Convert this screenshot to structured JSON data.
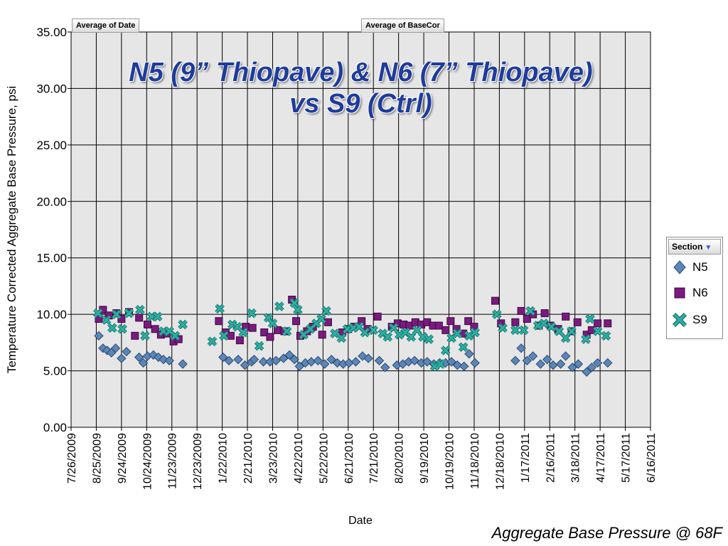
{
  "field_buttons": {
    "date": "Average of Date",
    "basecor": "Average of BaseCor"
  },
  "chart_data": {
    "type": "scatter",
    "title_lines": [
      "N5 (9” Thiopave) & N6 (7” Thiopave)",
      "vs S9 (Ctrl)"
    ],
    "xlabel": "Date",
    "ylabel": "Temperature Corrected Aggregate Base Pressure, psi",
    "ylim": [
      0,
      35
    ],
    "yticks": [
      "0.00",
      "5.00",
      "10.00",
      "15.00",
      "20.00",
      "25.00",
      "30.00",
      "35.00"
    ],
    "xlim": [
      "2009-07-26",
      "2011-06-16"
    ],
    "xticks": [
      "7/26/2009",
      "8/25/2009",
      "9/24/2009",
      "10/24/2009",
      "11/23/2009",
      "12/23/2009",
      "1/22/2010",
      "2/21/2010",
      "3/23/2010",
      "4/22/2010",
      "5/22/2010",
      "6/21/2010",
      "7/21/2010",
      "8/20/2010",
      "9/19/2010",
      "10/19/2010",
      "11/18/2010",
      "12/18/2010",
      "1/17/2011",
      "2/16/2011",
      "3/18/2011",
      "4/17/2011",
      "5/17/2011",
      "6/16/2011"
    ],
    "grid": true,
    "legend_title": "Section",
    "legend_position": "right",
    "series": [
      {
        "name": "N5",
        "marker": "diamond",
        "color": "#5b86b9",
        "points": [
          [
            "2009-08-28",
            8.1
          ],
          [
            "2009-09-02",
            7.0
          ],
          [
            "2009-09-07",
            6.8
          ],
          [
            "2009-09-12",
            6.6
          ],
          [
            "2009-09-17",
            7.0
          ],
          [
            "2009-09-24",
            6.1
          ],
          [
            "2009-09-30",
            6.7
          ],
          [
            "2009-10-15",
            6.2
          ],
          [
            "2009-10-20",
            5.7
          ],
          [
            "2009-10-25",
            6.3
          ],
          [
            "2009-11-01",
            6.4
          ],
          [
            "2009-11-07",
            6.2
          ],
          [
            "2009-11-13",
            6.0
          ],
          [
            "2009-11-20",
            5.9
          ],
          [
            "2009-12-06",
            5.6
          ],
          [
            "2010-01-23",
            6.2
          ],
          [
            "2010-01-30",
            5.9
          ],
          [
            "2010-02-10",
            6.0
          ],
          [
            "2010-02-18",
            5.5
          ],
          [
            "2010-02-26",
            5.8
          ],
          [
            "2010-03-01",
            6.0
          ],
          [
            "2010-03-12",
            5.8
          ],
          [
            "2010-03-20",
            5.8
          ],
          [
            "2010-03-27",
            5.9
          ],
          [
            "2010-04-05",
            6.1
          ],
          [
            "2010-04-12",
            6.4
          ],
          [
            "2010-04-18",
            6.0
          ],
          [
            "2010-04-24",
            5.4
          ],
          [
            "2010-05-01",
            5.7
          ],
          [
            "2010-05-08",
            5.8
          ],
          [
            "2010-05-16",
            5.9
          ],
          [
            "2010-05-24",
            5.6
          ],
          [
            "2010-06-01",
            6.0
          ],
          [
            "2010-06-08",
            5.7
          ],
          [
            "2010-06-15",
            5.6
          ],
          [
            "2010-06-22",
            5.7
          ],
          [
            "2010-06-30",
            5.8
          ],
          [
            "2010-07-08",
            6.3
          ],
          [
            "2010-07-15",
            6.1
          ],
          [
            "2010-07-28",
            5.9
          ],
          [
            "2010-08-04",
            5.3
          ],
          [
            "2010-08-18",
            5.5
          ],
          [
            "2010-08-25",
            5.6
          ],
          [
            "2010-09-01",
            5.8
          ],
          [
            "2010-09-08",
            5.9
          ],
          [
            "2010-09-16",
            5.7
          ],
          [
            "2010-09-23",
            5.8
          ],
          [
            "2010-10-01",
            5.6
          ],
          [
            "2010-10-08",
            5.7
          ],
          [
            "2010-10-15",
            5.7
          ],
          [
            "2010-10-22",
            5.8
          ],
          [
            "2010-10-29",
            5.5
          ],
          [
            "2010-11-06",
            5.4
          ],
          [
            "2010-11-12",
            6.5
          ],
          [
            "2010-11-19",
            5.7
          ],
          [
            "2011-01-06",
            5.9
          ],
          [
            "2011-01-13",
            7.0
          ],
          [
            "2011-01-20",
            5.9
          ],
          [
            "2011-01-27",
            6.3
          ],
          [
            "2011-02-05",
            5.6
          ],
          [
            "2011-02-13",
            6.0
          ],
          [
            "2011-02-20",
            5.5
          ],
          [
            "2011-03-01",
            5.6
          ],
          [
            "2011-03-07",
            6.3
          ],
          [
            "2011-03-15",
            5.3
          ],
          [
            "2011-03-22",
            5.6
          ],
          [
            "2011-04-01",
            4.9
          ],
          [
            "2011-04-07",
            5.3
          ],
          [
            "2011-04-14",
            5.7
          ],
          [
            "2011-04-26",
            5.7
          ]
        ]
      },
      {
        "name": "N6",
        "marker": "square",
        "color": "#7a1a80",
        "points": [
          [
            "2009-08-28",
            9.6
          ],
          [
            "2009-09-02",
            10.4
          ],
          [
            "2009-09-09",
            9.9
          ],
          [
            "2009-09-18",
            10.1
          ],
          [
            "2009-09-24",
            9.6
          ],
          [
            "2009-10-03",
            10.2
          ],
          [
            "2009-10-10",
            8.1
          ],
          [
            "2009-10-15",
            9.7
          ],
          [
            "2009-10-25",
            9.1
          ],
          [
            "2009-11-03",
            8.7
          ],
          [
            "2009-11-10",
            8.2
          ],
          [
            "2009-11-17",
            8.3
          ],
          [
            "2009-11-25",
            7.6
          ],
          [
            "2009-12-01",
            7.8
          ],
          [
            "2010-01-18",
            9.4
          ],
          [
            "2010-01-26",
            8.4
          ],
          [
            "2010-02-01",
            8.1
          ],
          [
            "2010-02-12",
            7.7
          ],
          [
            "2010-02-19",
            8.9
          ],
          [
            "2010-02-27",
            8.8
          ],
          [
            "2010-03-13",
            8.4
          ],
          [
            "2010-03-20",
            8.0
          ],
          [
            "2010-03-29",
            8.6
          ],
          [
            "2010-04-06",
            8.5
          ],
          [
            "2010-04-15",
            11.3
          ],
          [
            "2010-04-20",
            9.4
          ],
          [
            "2010-04-25",
            8.1
          ],
          [
            "2010-05-03",
            8.5
          ],
          [
            "2010-05-10",
            8.9
          ],
          [
            "2010-05-21",
            8.2
          ],
          [
            "2010-05-28",
            9.3
          ],
          [
            "2010-06-14",
            8.4
          ],
          [
            "2010-06-21",
            8.7
          ],
          [
            "2010-06-28",
            8.9
          ],
          [
            "2010-07-07",
            9.4
          ],
          [
            "2010-07-14",
            8.7
          ],
          [
            "2010-07-26",
            9.8
          ],
          [
            "2010-08-12",
            8.9
          ],
          [
            "2010-08-19",
            9.2
          ],
          [
            "2010-08-26",
            9.1
          ],
          [
            "2010-09-02",
            9.0
          ],
          [
            "2010-09-09",
            9.3
          ],
          [
            "2010-09-16",
            9.1
          ],
          [
            "2010-09-23",
            9.3
          ],
          [
            "2010-09-30",
            9.0
          ],
          [
            "2010-10-07",
            9.0
          ],
          [
            "2010-10-15",
            8.6
          ],
          [
            "2010-10-21",
            9.4
          ],
          [
            "2010-10-28",
            8.7
          ],
          [
            "2010-11-05",
            8.3
          ],
          [
            "2010-11-11",
            9.4
          ],
          [
            "2010-11-18",
            8.9
          ],
          [
            "2010-12-13",
            11.2
          ],
          [
            "2010-12-20",
            9.2
          ],
          [
            "2011-01-06",
            9.3
          ],
          [
            "2011-01-13",
            10.3
          ],
          [
            "2011-01-20",
            9.6
          ],
          [
            "2011-01-27",
            10.0
          ],
          [
            "2011-02-03",
            9.0
          ],
          [
            "2011-02-10",
            10.1
          ],
          [
            "2011-02-17",
            9.0
          ],
          [
            "2011-02-26",
            8.7
          ],
          [
            "2011-03-07",
            9.8
          ],
          [
            "2011-03-14",
            8.5
          ],
          [
            "2011-03-21",
            9.3
          ],
          [
            "2011-04-01",
            8.2
          ],
          [
            "2011-04-07",
            8.6
          ],
          [
            "2011-04-14",
            9.2
          ],
          [
            "2011-04-26",
            9.2
          ]
        ]
      },
      {
        "name": "S9",
        "marker": "x",
        "color": "#2ab0a3",
        "points": [
          [
            "2009-08-27",
            10.1
          ],
          [
            "2009-09-06",
            9.5
          ],
          [
            "2009-09-13",
            8.8
          ],
          [
            "2009-09-18",
            10.0
          ],
          [
            "2009-09-25",
            8.7
          ],
          [
            "2009-10-03",
            10.1
          ],
          [
            "2009-10-16",
            10.4
          ],
          [
            "2009-10-22",
            8.1
          ],
          [
            "2009-10-30",
            9.8
          ],
          [
            "2009-11-06",
            9.8
          ],
          [
            "2009-11-13",
            8.5
          ],
          [
            "2009-11-20",
            8.5
          ],
          [
            "2009-11-27",
            8.1
          ],
          [
            "2009-12-06",
            9.1
          ],
          [
            "2010-01-10",
            7.6
          ],
          [
            "2010-01-19",
            10.5
          ],
          [
            "2010-01-24",
            8.1
          ],
          [
            "2010-02-03",
            9.1
          ],
          [
            "2010-02-09",
            8.9
          ],
          [
            "2010-02-16",
            8.4
          ],
          [
            "2010-02-26",
            10.1
          ],
          [
            "2010-03-07",
            7.2
          ],
          [
            "2010-03-18",
            9.7
          ],
          [
            "2010-03-23",
            9.2
          ],
          [
            "2010-03-31",
            10.7
          ],
          [
            "2010-04-09",
            8.5
          ],
          [
            "2010-04-18",
            11.0
          ],
          [
            "2010-04-22",
            10.4
          ],
          [
            "2010-04-29",
            8.2
          ],
          [
            "2010-05-07",
            8.7
          ],
          [
            "2010-05-14",
            9.2
          ],
          [
            "2010-05-20",
            9.6
          ],
          [
            "2010-05-26",
            10.3
          ],
          [
            "2010-06-05",
            8.3
          ],
          [
            "2010-06-13",
            7.9
          ],
          [
            "2010-06-20",
            8.7
          ],
          [
            "2010-06-27",
            8.8
          ],
          [
            "2010-07-04",
            8.9
          ],
          [
            "2010-07-11",
            8.4
          ],
          [
            "2010-07-21",
            8.6
          ],
          [
            "2010-08-01",
            8.3
          ],
          [
            "2010-08-07",
            8.0
          ],
          [
            "2010-08-14",
            8.8
          ],
          [
            "2010-08-21",
            8.2
          ],
          [
            "2010-08-28",
            8.4
          ],
          [
            "2010-09-04",
            8.0
          ],
          [
            "2010-09-11",
            8.6
          ],
          [
            "2010-09-18",
            8.0
          ],
          [
            "2010-09-25",
            7.8
          ],
          [
            "2010-10-02",
            5.4
          ],
          [
            "2010-10-09",
            5.6
          ],
          [
            "2010-10-15",
            6.8
          ],
          [
            "2010-10-22",
            7.9
          ],
          [
            "2010-10-29",
            8.3
          ],
          [
            "2010-11-05",
            7.1
          ],
          [
            "2010-11-12",
            8.1
          ],
          [
            "2010-11-19",
            8.4
          ],
          [
            "2010-12-15",
            10.0
          ],
          [
            "2010-12-22",
            8.8
          ],
          [
            "2011-01-06",
            8.6
          ],
          [
            "2011-01-16",
            8.6
          ],
          [
            "2011-01-24",
            10.3
          ],
          [
            "2011-02-02",
            9.0
          ],
          [
            "2011-02-09",
            9.2
          ],
          [
            "2011-02-18",
            8.9
          ],
          [
            "2011-02-27",
            8.5
          ],
          [
            "2011-03-07",
            7.9
          ],
          [
            "2011-03-14",
            8.5
          ],
          [
            "2011-03-31",
            7.8
          ],
          [
            "2011-04-05",
            9.6
          ],
          [
            "2011-04-14",
            8.5
          ],
          [
            "2011-04-24",
            8.1
          ]
        ]
      }
    ]
  },
  "caption": "Aggregate Base Pressure @ 68F"
}
